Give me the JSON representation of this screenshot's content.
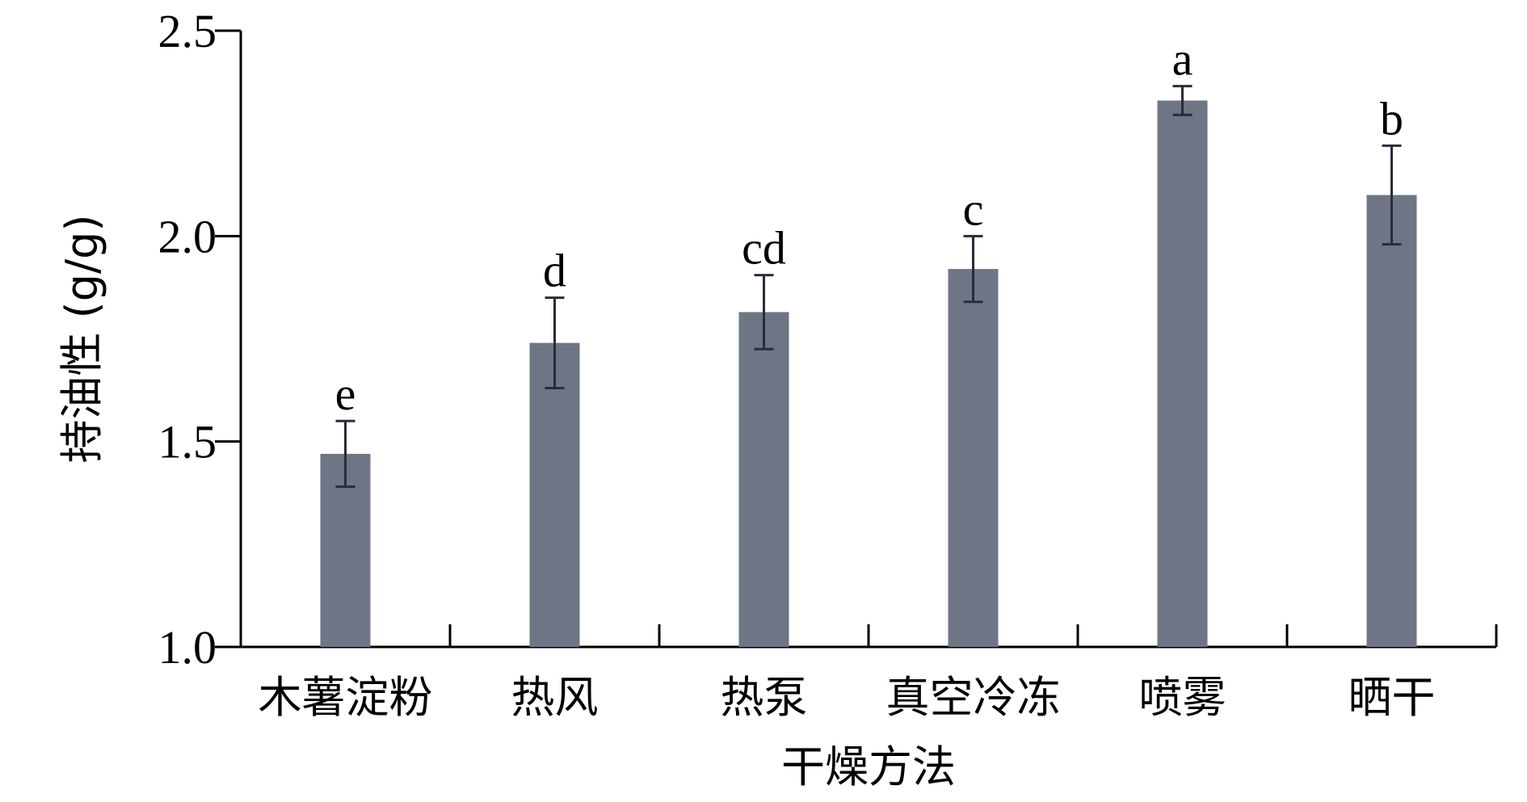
{
  "chart_data": {
    "type": "bar",
    "xlabel": "干燥方法",
    "ylabel": "持油性 (g/g)",
    "ylim": [
      1.0,
      2.5
    ],
    "yticks": [
      "1.0",
      "1.5",
      "2.0",
      "2.5"
    ],
    "categories": [
      "木薯淀粉",
      "热风",
      "热泵",
      "真空冷冻",
      "喷雾",
      "晒干"
    ],
    "values": [
      1.47,
      1.74,
      1.815,
      1.92,
      2.33,
      2.1
    ],
    "errors": [
      0.08,
      0.11,
      0.09,
      0.08,
      0.035,
      0.12
    ],
    "significance": [
      "e",
      "d",
      "cd",
      "c",
      "a",
      "b"
    ],
    "bar_color": "#6e7584",
    "error_color": "#2b2b3a",
    "grid": false,
    "legend": "none"
  }
}
